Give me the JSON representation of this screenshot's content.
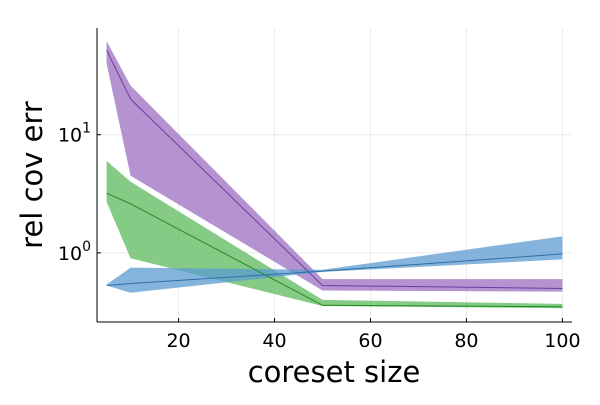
{
  "chart_data": {
    "type": "line",
    "title": "",
    "xlabel": "coreset size",
    "ylabel": "rel cov err",
    "x_scale": "linear",
    "y_scale": "log10",
    "xlim": [
      3,
      102
    ],
    "ylim": [
      0.26,
      80
    ],
    "x_ticks": [
      {
        "value": 20,
        "label": "20"
      },
      {
        "value": 40,
        "label": "40"
      },
      {
        "value": 60,
        "label": "60"
      },
      {
        "value": 80,
        "label": "80"
      },
      {
        "value": 100,
        "label": "100"
      }
    ],
    "y_ticks": [
      {
        "value": 1,
        "base": "10",
        "exponent": "0"
      },
      {
        "value": 10,
        "base": "10",
        "exponent": "1"
      }
    ],
    "grid": true,
    "legend": "none",
    "x": [
      5,
      10,
      50,
      100
    ],
    "series": [
      {
        "color": "#6b3fa0",
        "band_color": "#9b6fc0",
        "values": [
          52,
          20,
          0.53,
          0.5
        ],
        "lower": [
          40,
          4.5,
          0.48,
          0.47
        ],
        "upper": [
          62,
          26,
          0.6,
          0.6
        ]
      },
      {
        "color": "#1e8c1e",
        "band_color": "#5cb85c",
        "values": [
          3.2,
          2.6,
          0.36,
          0.35
        ],
        "lower": [
          2.7,
          0.9,
          0.355,
          0.34
        ],
        "upper": [
          6.0,
          4.0,
          0.4,
          0.37
        ]
      },
      {
        "color": "#2f6fa8",
        "band_color": "#5b9bd0",
        "values": [
          0.53,
          0.55,
          0.7,
          0.98
        ],
        "lower": [
          0.53,
          0.46,
          0.69,
          0.88
        ],
        "upper": [
          0.54,
          0.75,
          0.72,
          1.38
        ]
      }
    ]
  }
}
